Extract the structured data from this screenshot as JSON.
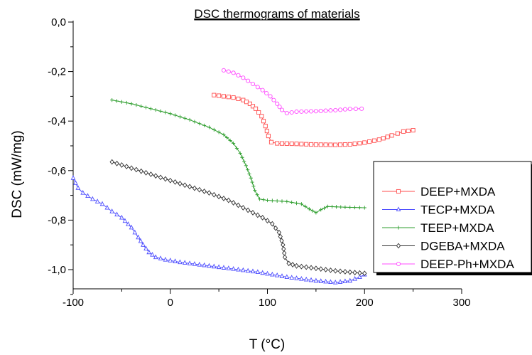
{
  "chart_data": {
    "type": "line",
    "title": "DSC thermograms of materials",
    "xlabel": "T (°C)",
    "ylabel": "DSC (mW/mg)",
    "xlim": [
      -100,
      300
    ],
    "ylim": [
      -1.15,
      0.0
    ],
    "x_ticks": [
      -100,
      0,
      100,
      200,
      300
    ],
    "x_tick_labels": [
      "-100",
      "0",
      "100",
      "200",
      "300"
    ],
    "y_ticks": [
      0.0,
      -0.2,
      -0.4,
      -0.6,
      -0.8,
      -1.0
    ],
    "y_tick_labels": [
      "0,0",
      "-0,2",
      "-0,4",
      "-0,6",
      "-0,8",
      "-1,0"
    ],
    "grid": false,
    "legend_position": "right",
    "series": [
      {
        "name": "DEEP+MXDA",
        "color": "#ff4d4d",
        "marker": "square",
        "points": [
          [
            45,
            -0.295
          ],
          [
            55,
            -0.3
          ],
          [
            65,
            -0.305
          ],
          [
            75,
            -0.315
          ],
          [
            82,
            -0.33
          ],
          [
            88,
            -0.35
          ],
          [
            94,
            -0.38
          ],
          [
            98,
            -0.42
          ],
          [
            101,
            -0.46
          ],
          [
            104,
            -0.485
          ],
          [
            110,
            -0.49
          ],
          [
            130,
            -0.492
          ],
          [
            150,
            -0.495
          ],
          [
            170,
            -0.496
          ],
          [
            185,
            -0.494
          ],
          [
            200,
            -0.487
          ],
          [
            215,
            -0.475
          ],
          [
            228,
            -0.458
          ],
          [
            240,
            -0.442
          ],
          [
            250,
            -0.437
          ]
        ]
      },
      {
        "name": "TECP+MXDA",
        "color": "#4d4dff",
        "marker": "triangle",
        "points": [
          [
            -100,
            -0.63
          ],
          [
            -95,
            -0.67
          ],
          [
            -90,
            -0.69
          ],
          [
            -80,
            -0.715
          ],
          [
            -70,
            -0.735
          ],
          [
            -60,
            -0.765
          ],
          [
            -50,
            -0.79
          ],
          [
            -40,
            -0.83
          ],
          [
            -33,
            -0.87
          ],
          [
            -28,
            -0.9
          ],
          [
            -22,
            -0.93
          ],
          [
            -15,
            -0.95
          ],
          [
            -5,
            -0.96
          ],
          [
            10,
            -0.97
          ],
          [
            30,
            -0.98
          ],
          [
            60,
            -0.995
          ],
          [
            90,
            -1.01
          ],
          [
            120,
            -1.03
          ],
          [
            150,
            -1.045
          ],
          [
            170,
            -1.052
          ],
          [
            185,
            -1.045
          ],
          [
            195,
            -1.03
          ],
          [
            200,
            -1.02
          ]
        ]
      },
      {
        "name": "TEEP+MXDA",
        "color": "#2e9e2e",
        "marker": "cross",
        "points": [
          [
            -60,
            -0.315
          ],
          [
            -40,
            -0.33
          ],
          [
            -20,
            -0.35
          ],
          [
            0,
            -0.37
          ],
          [
            20,
            -0.395
          ],
          [
            40,
            -0.425
          ],
          [
            55,
            -0.455
          ],
          [
            65,
            -0.49
          ],
          [
            72,
            -0.53
          ],
          [
            78,
            -0.58
          ],
          [
            83,
            -0.63
          ],
          [
            87,
            -0.68
          ],
          [
            92,
            -0.715
          ],
          [
            100,
            -0.72
          ],
          [
            120,
            -0.725
          ],
          [
            135,
            -0.735
          ],
          [
            143,
            -0.755
          ],
          [
            150,
            -0.77
          ],
          [
            155,
            -0.758
          ],
          [
            162,
            -0.745
          ],
          [
            180,
            -0.748
          ],
          [
            200,
            -0.75
          ]
        ]
      },
      {
        "name": "DGEBA+MXDA",
        "color": "#333333",
        "marker": "diamond",
        "points": [
          [
            -60,
            -0.565
          ],
          [
            -40,
            -0.59
          ],
          [
            -20,
            -0.615
          ],
          [
            0,
            -0.64
          ],
          [
            20,
            -0.665
          ],
          [
            40,
            -0.69
          ],
          [
            60,
            -0.72
          ],
          [
            80,
            -0.76
          ],
          [
            95,
            -0.79
          ],
          [
            105,
            -0.815
          ],
          [
            112,
            -0.85
          ],
          [
            116,
            -0.9
          ],
          [
            118,
            -0.95
          ],
          [
            122,
            -0.975
          ],
          [
            130,
            -0.985
          ],
          [
            150,
            -0.995
          ],
          [
            170,
            -1.005
          ],
          [
            190,
            -1.012
          ],
          [
            200,
            -1.015
          ]
        ]
      },
      {
        "name": "DEEP-Ph+MXDA",
        "color": "#ff4dff",
        "marker": "circle",
        "points": [
          [
            55,
            -0.195
          ],
          [
            65,
            -0.205
          ],
          [
            75,
            -0.225
          ],
          [
            85,
            -0.25
          ],
          [
            95,
            -0.275
          ],
          [
            103,
            -0.3
          ],
          [
            110,
            -0.33
          ],
          [
            115,
            -0.355
          ],
          [
            120,
            -0.368
          ],
          [
            130,
            -0.362
          ],
          [
            150,
            -0.36
          ],
          [
            170,
            -0.356
          ],
          [
            185,
            -0.351
          ],
          [
            197,
            -0.35
          ]
        ]
      }
    ]
  }
}
